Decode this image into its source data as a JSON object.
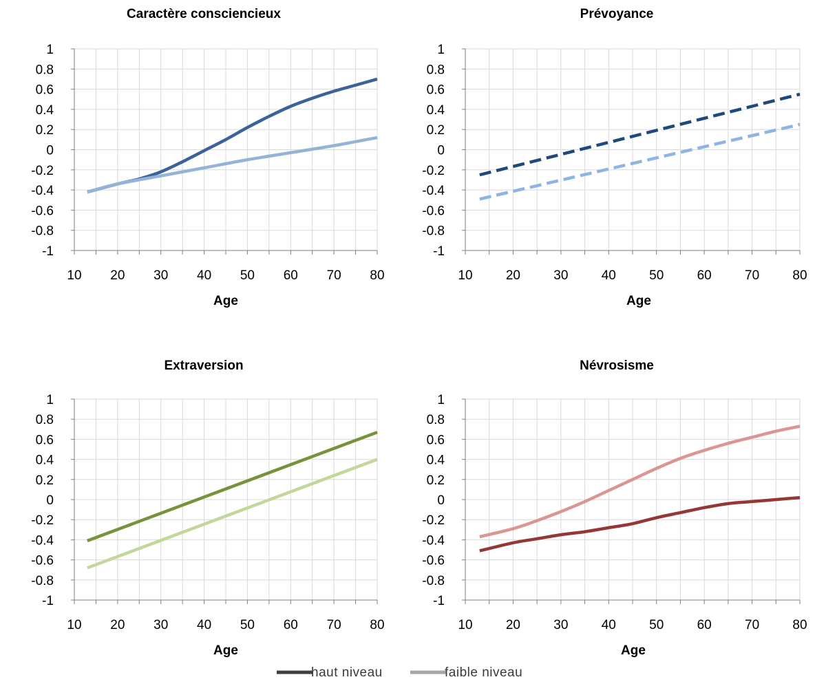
{
  "legend": {
    "items": [
      {
        "label": "haut niveau",
        "color": "#3f3f3f"
      },
      {
        "label": "faible niveau",
        "color": "#a6a6a6"
      }
    ]
  },
  "chart_data": [
    {
      "type": "line",
      "title": "Caractère consciencieux",
      "xlabel": "Age",
      "ylabel": "",
      "xlim": [
        10,
        80
      ],
      "ylim": [
        -1,
        1
      ],
      "xticks": [
        10,
        20,
        30,
        40,
        50,
        60,
        70,
        80
      ],
      "yticks": [
        1,
        0.8,
        0.6,
        0.4,
        0.2,
        0,
        -0.2,
        -0.4,
        -0.6,
        -0.8,
        -1
      ],
      "ytick_labels": [
        "1",
        "0.8",
        "0.6",
        "0.4",
        "0.2",
        "0",
        "-0.2",
        "-0.4",
        "-0.6",
        "-0.8",
        "-1"
      ],
      "grid": true,
      "series": [
        {
          "name": "haut niveau",
          "color": "#3c6399",
          "dash": "solid",
          "x": [
            13,
            20,
            25,
            30,
            35,
            40,
            45,
            50,
            55,
            60,
            65,
            70,
            75,
            80
          ],
          "y": [
            -0.42,
            -0.34,
            -0.29,
            -0.22,
            -0.12,
            -0.01,
            0.1,
            0.22,
            0.33,
            0.43,
            0.51,
            0.58,
            0.64,
            0.7
          ]
        },
        {
          "name": "faible niveau",
          "color": "#95b3d7",
          "dash": "solid",
          "x": [
            13,
            20,
            30,
            40,
            50,
            60,
            70,
            80
          ],
          "y": [
            -0.42,
            -0.34,
            -0.26,
            -0.18,
            -0.1,
            -0.03,
            0.04,
            0.12
          ]
        }
      ]
    },
    {
      "type": "line",
      "title": "Prévoyance",
      "xlabel": "Age",
      "ylabel": "",
      "xlim": [
        10,
        80
      ],
      "ylim": [
        -1,
        1
      ],
      "xticks": [
        10,
        20,
        30,
        40,
        50,
        60,
        70,
        80
      ],
      "yticks": [
        1,
        0.8,
        0.6,
        0.4,
        0.2,
        0,
        -0.2,
        -0.4,
        -0.6,
        -0.8,
        -1
      ],
      "ytick_labels": [
        "1",
        "0.8",
        "0.6",
        "0.4",
        "0.2",
        "0",
        "-0.2",
        "-0.4",
        "-0.6",
        "-0.8",
        "-1"
      ],
      "grid": true,
      "series": [
        {
          "name": "haut niveau",
          "color": "#1f497d",
          "dash": "dashed",
          "x": [
            13,
            80
          ],
          "y": [
            -0.25,
            0.55
          ]
        },
        {
          "name": "faible niveau",
          "color": "#8db4e2",
          "dash": "dashed",
          "x": [
            13,
            80
          ],
          "y": [
            -0.49,
            0.25
          ]
        }
      ]
    },
    {
      "type": "line",
      "title": "Extraversion",
      "xlabel": "Age",
      "ylabel": "",
      "xlim": [
        10,
        80
      ],
      "ylim": [
        -1,
        1
      ],
      "xticks": [
        10,
        20,
        30,
        40,
        50,
        60,
        70,
        80
      ],
      "yticks": [
        1,
        0.8,
        0.6,
        0.4,
        0.2,
        0,
        -0.2,
        -0.4,
        -0.6,
        -0.8,
        -1
      ],
      "ytick_labels": [
        "1",
        "0.8",
        "0.6",
        "0.4",
        "0.2",
        "0",
        "-0.2",
        "-0.4",
        "-0.6",
        "-0.8",
        "-1"
      ],
      "grid": true,
      "series": [
        {
          "name": "haut niveau",
          "color": "#76923c",
          "dash": "solid",
          "x": [
            13,
            80
          ],
          "y": [
            -0.41,
            0.67
          ]
        },
        {
          "name": "faible niveau",
          "color": "#c4d79b",
          "dash": "solid",
          "x": [
            13,
            80
          ],
          "y": [
            -0.68,
            0.4
          ]
        }
      ]
    },
    {
      "type": "line",
      "title": "Névrosisme",
      "xlabel": "Age",
      "ylabel": "",
      "xlim": [
        10,
        80
      ],
      "ylim": [
        -1,
        1
      ],
      "xticks": [
        10,
        20,
        30,
        40,
        50,
        60,
        70,
        80
      ],
      "yticks": [
        1,
        0.8,
        0.6,
        0.4,
        0.2,
        0,
        -0.2,
        -0.4,
        -0.6,
        -0.8,
        -1
      ],
      "ytick_labels": [
        "1",
        "0.8",
        "0.6",
        "0.4",
        "0.2",
        "0",
        "-0.2",
        "-0.4",
        "-0.6",
        "-0.8",
        "-1"
      ],
      "grid": true,
      "series": [
        {
          "name": "haut niveau",
          "color": "#953735",
          "dash": "solid",
          "x": [
            13,
            20,
            25,
            30,
            35,
            40,
            45,
            50,
            55,
            60,
            65,
            70,
            75,
            80
          ],
          "y": [
            -0.51,
            -0.43,
            -0.39,
            -0.35,
            -0.32,
            -0.28,
            -0.24,
            -0.18,
            -0.13,
            -0.08,
            -0.04,
            -0.02,
            0.0,
            0.02
          ]
        },
        {
          "name": "faible niveau",
          "color": "#da9694",
          "dash": "solid",
          "x": [
            13,
            20,
            25,
            30,
            35,
            40,
            45,
            50,
            55,
            60,
            65,
            70,
            75,
            80
          ],
          "y": [
            -0.37,
            -0.29,
            -0.21,
            -0.12,
            -0.02,
            0.09,
            0.2,
            0.31,
            0.41,
            0.49,
            0.56,
            0.62,
            0.68,
            0.73
          ]
        }
      ]
    }
  ]
}
